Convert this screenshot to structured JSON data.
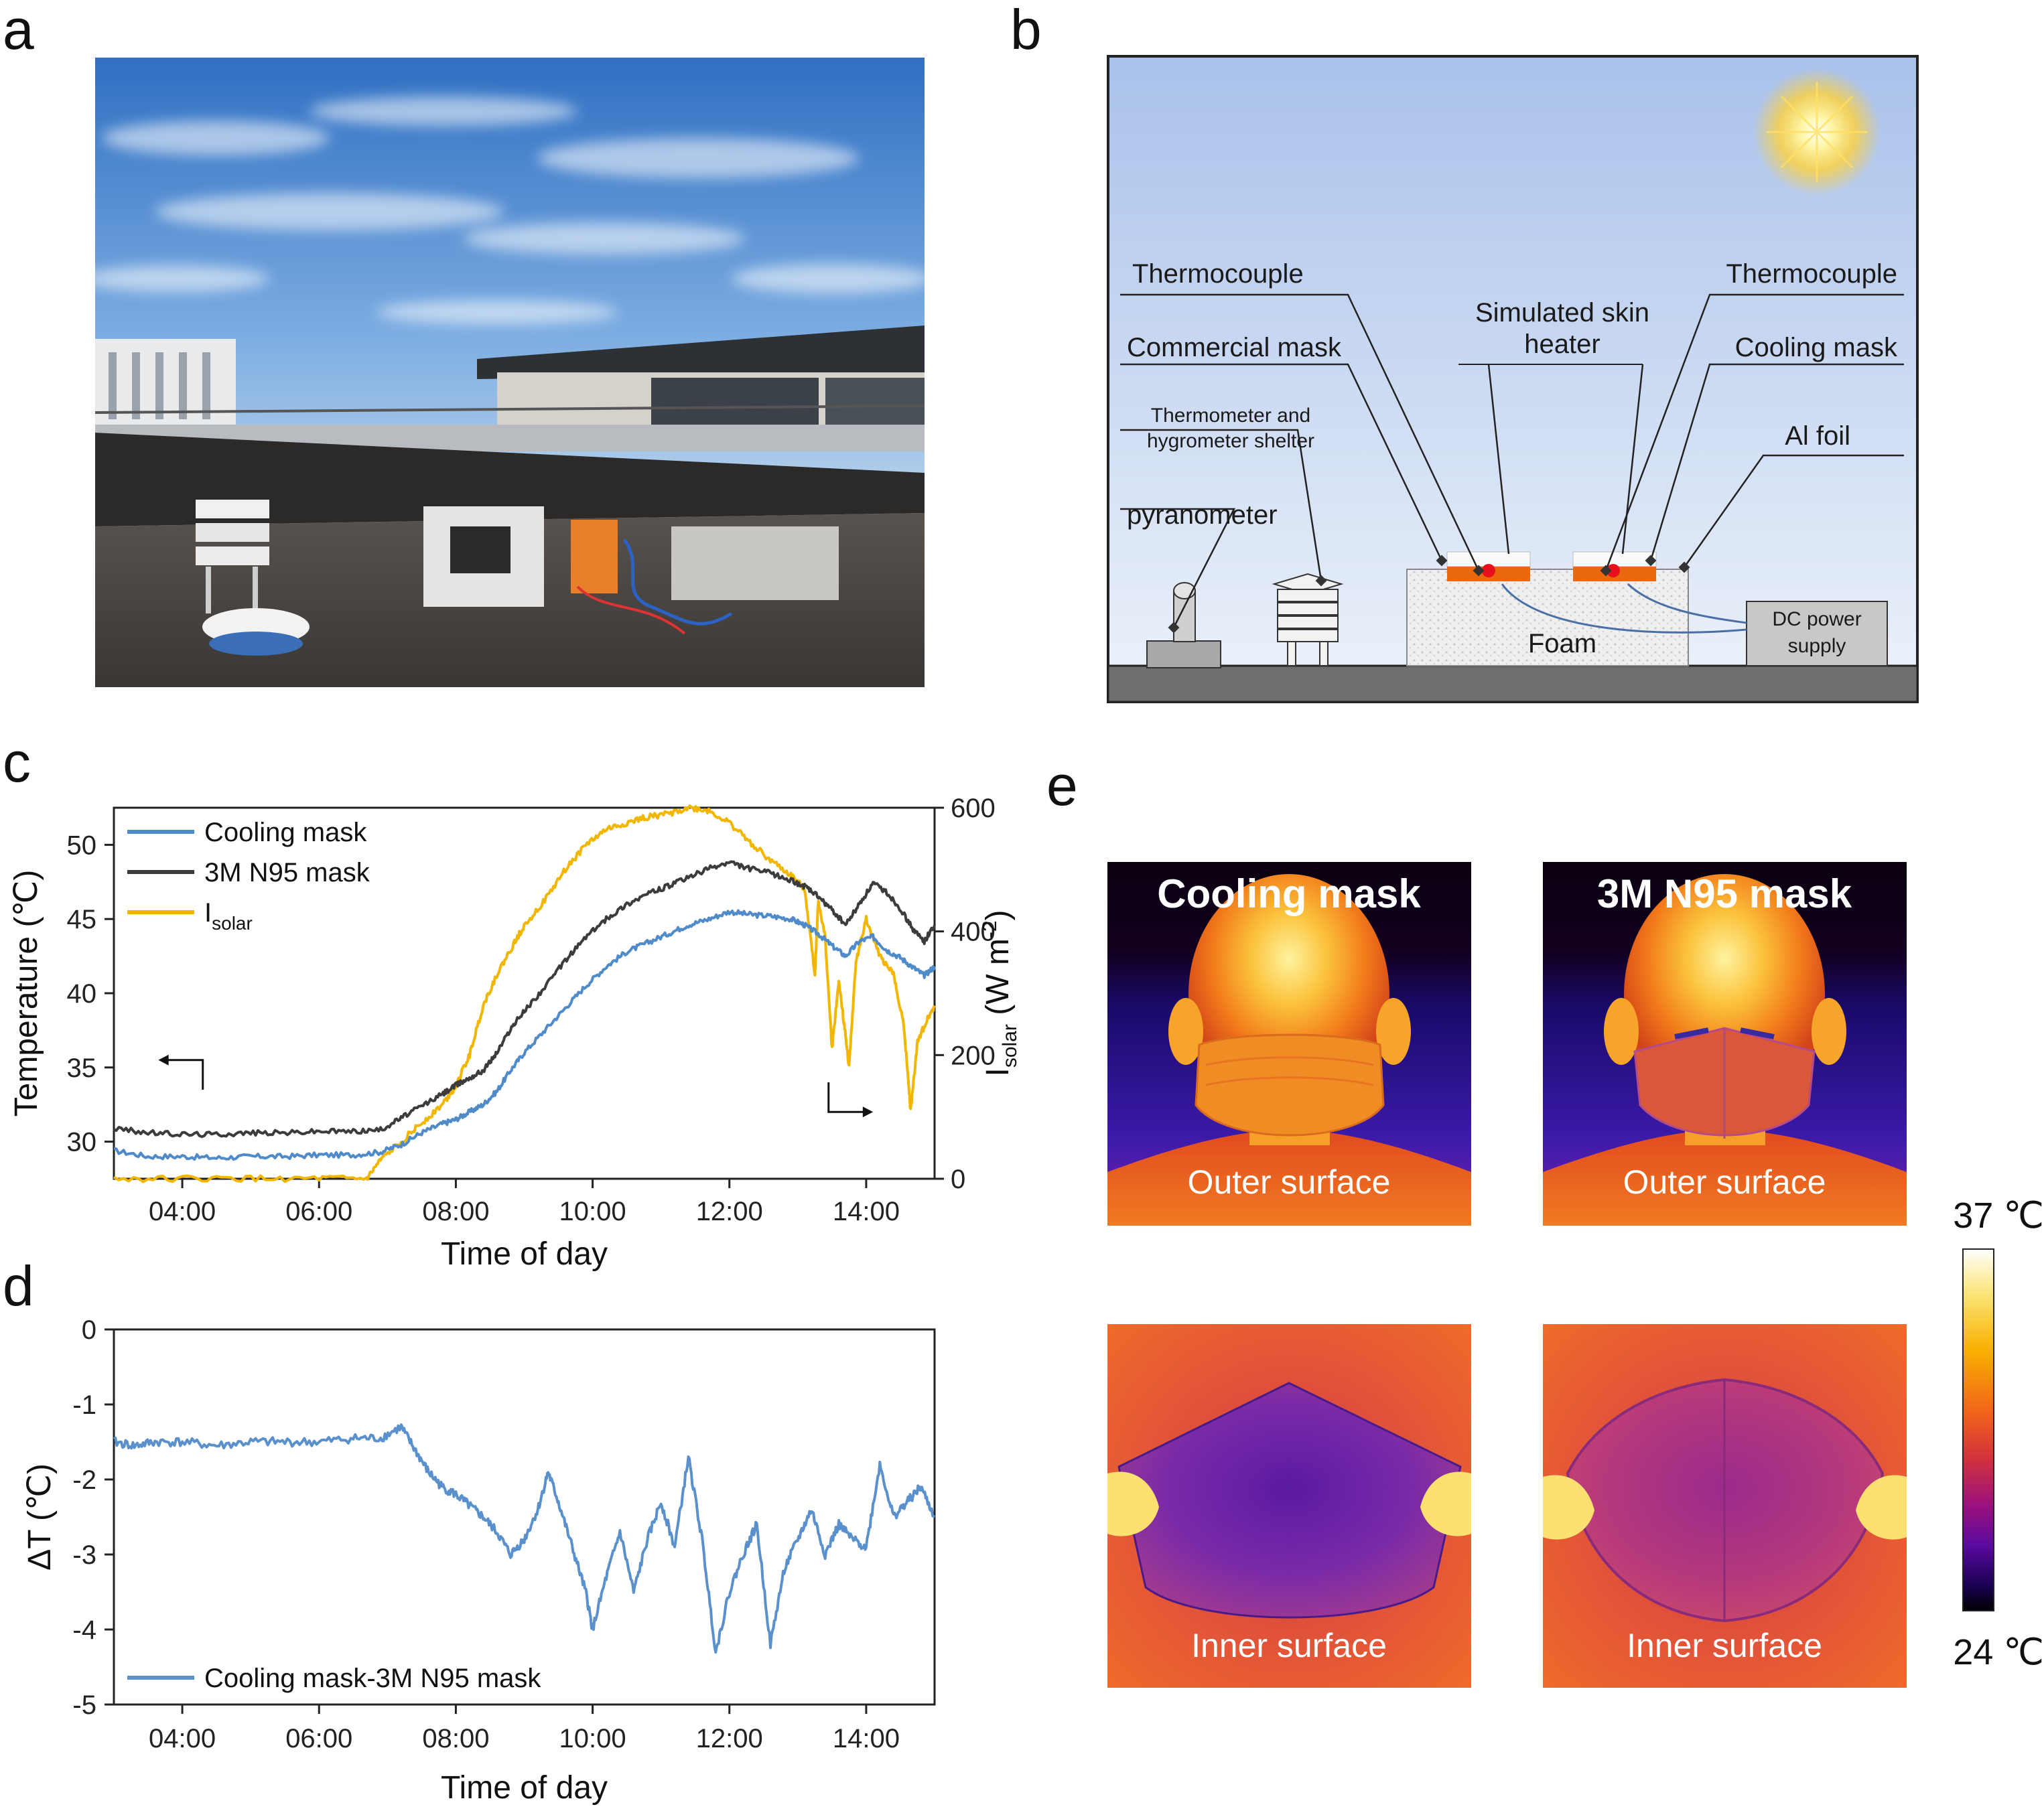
{
  "panels": {
    "a": "a",
    "b": "b",
    "c": "c",
    "d": "d",
    "e": "e"
  },
  "diagram_b": {
    "labels": {
      "thermocouple_left": "Thermocouple",
      "thermocouple_right": "Thermocouple",
      "simulated_skin_1": "Simulated skin",
      "simulated_skin_2": "heater",
      "commercial_mask": "Commercial mask",
      "cooling_mask": "Cooling mask",
      "thermometer_1": "Thermometer and",
      "thermometer_2": "hygrometer shelter",
      "al_foil": "Al foil",
      "pyranometer": "pyranometer",
      "foam": "Foam",
      "dc_1": "DC power",
      "dc_2": "supply"
    },
    "colors": {
      "sky_top": "#a9c1ea",
      "sky_bottom": "#e9f0fb",
      "heater": "#e8690e",
      "thermocouple_dot": "#e8101c",
      "ground": "#6e6e6e",
      "wire": "#4a6fa5"
    }
  },
  "chart_data": [
    {
      "panel": "c",
      "type": "line",
      "xlabel": "Time of day",
      "ylabel": "Temperature (℃)",
      "y2label": "I",
      "y2label_sub": "solar",
      "y2label_unit": " (W m",
      "y2label_sup": "-2",
      "y2label_end": ")",
      "xlim": [
        3.0,
        15.0
      ],
      "ylim": [
        27.5,
        52.5
      ],
      "y2lim": [
        0,
        600
      ],
      "xticks": [
        "04:00",
        "06:00",
        "08:00",
        "10:00",
        "12:00",
        "14:00"
      ],
      "yticks": [
        "30",
        "35",
        "40",
        "45",
        "50"
      ],
      "y2ticks": [
        "0",
        "200",
        "400",
        "600"
      ],
      "legend": [
        "Cooling mask",
        "3M N95 mask",
        "I"
      ],
      "legend_sub": "solar",
      "colors": {
        "cooling": "#4f8ac9",
        "n95": "#3c3c3c",
        "solar": "#f2b600"
      },
      "series": [
        {
          "name": "Cooling mask",
          "axis": "left",
          "x": [
            3.0,
            3.5,
            4.0,
            4.5,
            5.0,
            5.5,
            6.0,
            6.5,
            6.9,
            7.2,
            7.5,
            7.8,
            8.0,
            8.2,
            8.4,
            8.6,
            8.8,
            9.0,
            9.3,
            9.6,
            9.9,
            10.2,
            10.5,
            10.8,
            11.1,
            11.4,
            11.7,
            12.0,
            12.3,
            12.6,
            12.9,
            13.1,
            13.3,
            13.5,
            13.7,
            13.9,
            14.1,
            14.3,
            14.5,
            14.7,
            14.85,
            15.0
          ],
          "values": [
            29.4,
            29.0,
            29.0,
            28.9,
            29.0,
            29.0,
            29.1,
            29.1,
            29.3,
            29.8,
            30.6,
            31.2,
            31.5,
            32.0,
            32.5,
            33.4,
            34.8,
            36.0,
            37.5,
            39.0,
            40.5,
            41.8,
            42.8,
            43.4,
            44.0,
            44.6,
            45.0,
            45.5,
            45.3,
            45.2,
            45.0,
            44.6,
            44.0,
            43.2,
            42.5,
            43.5,
            43.8,
            42.9,
            42.4,
            41.7,
            41.2,
            41.8
          ]
        },
        {
          "name": "3M N95 mask",
          "axis": "left",
          "x": [
            3.0,
            3.5,
            4.0,
            4.5,
            5.0,
            5.5,
            6.0,
            6.5,
            6.9,
            7.2,
            7.5,
            7.8,
            8.0,
            8.2,
            8.4,
            8.6,
            8.8,
            9.0,
            9.3,
            9.6,
            9.9,
            10.2,
            10.5,
            10.8,
            11.1,
            11.4,
            11.7,
            12.0,
            12.3,
            12.6,
            12.9,
            13.1,
            13.3,
            13.5,
            13.7,
            13.9,
            14.1,
            14.3,
            14.5,
            14.7,
            14.85,
            15.0
          ],
          "values": [
            30.9,
            30.6,
            30.5,
            30.5,
            30.6,
            30.6,
            30.7,
            30.7,
            30.8,
            31.6,
            32.4,
            33.2,
            33.8,
            34.3,
            34.8,
            36.0,
            37.6,
            38.8,
            40.4,
            42.2,
            43.8,
            45.0,
            46.0,
            46.7,
            47.2,
            47.8,
            48.4,
            48.8,
            48.4,
            48.1,
            47.6,
            47.2,
            46.5,
            45.6,
            44.6,
            46.0,
            47.4,
            46.8,
            45.7,
            44.2,
            43.5,
            44.6
          ]
        },
        {
          "name": "I",
          "axis": "right",
          "x": [
            3.0,
            4.0,
            5.0,
            6.0,
            6.7,
            6.9,
            7.2,
            7.5,
            7.8,
            8.0,
            8.2,
            8.4,
            8.6,
            8.8,
            9.0,
            9.3,
            9.6,
            9.9,
            10.2,
            10.5,
            10.8,
            11.1,
            11.4,
            11.7,
            12.0,
            12.3,
            12.6,
            12.9,
            13.1,
            13.25,
            13.3,
            13.4,
            13.5,
            13.6,
            13.7,
            13.75,
            13.85,
            14.0,
            14.2,
            14.4,
            14.55,
            14.65,
            14.75,
            14.9,
            15.0
          ],
          "values": [
            0,
            0,
            0,
            0,
            0,
            30,
            60,
            90,
            120,
            150,
            200,
            280,
            330,
            370,
            410,
            450,
            500,
            540,
            565,
            575,
            585,
            590,
            600,
            595,
            575,
            545,
            515,
            490,
            470,
            330,
            450,
            390,
            210,
            320,
            230,
            180,
            350,
            420,
            360,
            330,
            250,
            110,
            220,
            260,
            280
          ]
        }
      ],
      "annotations": {
        "arrow_left": "left axis",
        "arrow_right": "right axis"
      }
    },
    {
      "panel": "d",
      "type": "line",
      "xlabel": "Time of day",
      "ylabel": "ΔT (℃)",
      "xlim": [
        3.0,
        15.0
      ],
      "ylim": [
        -5,
        0
      ],
      "xticks": [
        "04:00",
        "06:00",
        "08:00",
        "10:00",
        "12:00",
        "14:00"
      ],
      "yticks": [
        "0",
        "-1",
        "-2",
        "-3",
        "-4",
        "-5"
      ],
      "legend": [
        "Cooling mask-3M N95 mask"
      ],
      "colors": {
        "line": "#5a91cd"
      },
      "series": [
        {
          "name": "Cooling mask-3M N95 mask",
          "x": [
            3.0,
            3.3,
            3.6,
            4.0,
            4.5,
            5.0,
            5.5,
            6.0,
            6.5,
            6.9,
            7.2,
            7.4,
            7.6,
            7.8,
            8.0,
            8.2,
            8.4,
            8.6,
            8.8,
            9.0,
            9.2,
            9.35,
            9.5,
            9.7,
            9.9,
            10.0,
            10.2,
            10.4,
            10.6,
            10.8,
            11.0,
            11.2,
            11.4,
            11.6,
            11.8,
            12.0,
            12.2,
            12.4,
            12.6,
            12.8,
            13.0,
            13.2,
            13.4,
            13.6,
            13.8,
            14.0,
            14.2,
            14.4,
            14.6,
            14.8,
            15.0
          ],
          "values": [
            -1.5,
            -1.55,
            -1.5,
            -1.5,
            -1.55,
            -1.5,
            -1.5,
            -1.5,
            -1.45,
            -1.45,
            -1.3,
            -1.6,
            -1.9,
            -2.1,
            -2.2,
            -2.35,
            -2.5,
            -2.7,
            -3.0,
            -2.8,
            -2.4,
            -1.9,
            -2.3,
            -2.9,
            -3.5,
            -4.0,
            -3.3,
            -2.7,
            -3.5,
            -2.8,
            -2.3,
            -2.9,
            -1.7,
            -2.8,
            -4.3,
            -3.5,
            -3.0,
            -2.6,
            -4.2,
            -3.2,
            -2.8,
            -2.4,
            -3.0,
            -2.6,
            -2.8,
            -2.9,
            -1.8,
            -2.5,
            -2.3,
            -2.1,
            -2.5
          ]
        }
      ]
    }
  ],
  "panel_e": {
    "top_left_title": "Cooling mask",
    "top_right_title": "3M N95 mask",
    "top_left_caption": "Outer surface",
    "top_right_caption": "Outer surface",
    "bottom_left_caption": "Inner surface",
    "bottom_right_caption": "Inner surface",
    "colorbar_max": "37 ℃",
    "colorbar_min": "24 ℃",
    "colormap": [
      "#ffffff",
      "#fbe67a",
      "#f9b000",
      "#f2641a",
      "#d1323c",
      "#a0127a",
      "#5a0aa0",
      "#1a0052",
      "#000000"
    ]
  },
  "photo_a": {
    "colors": {
      "sky_top": "#3f7fcb",
      "sky_mid": "#8bb6e4",
      "sky_low": "#d9e6f2",
      "roof": "#4a4744",
      "parapet": "#2c2a29",
      "building": "#3b3f44"
    }
  }
}
